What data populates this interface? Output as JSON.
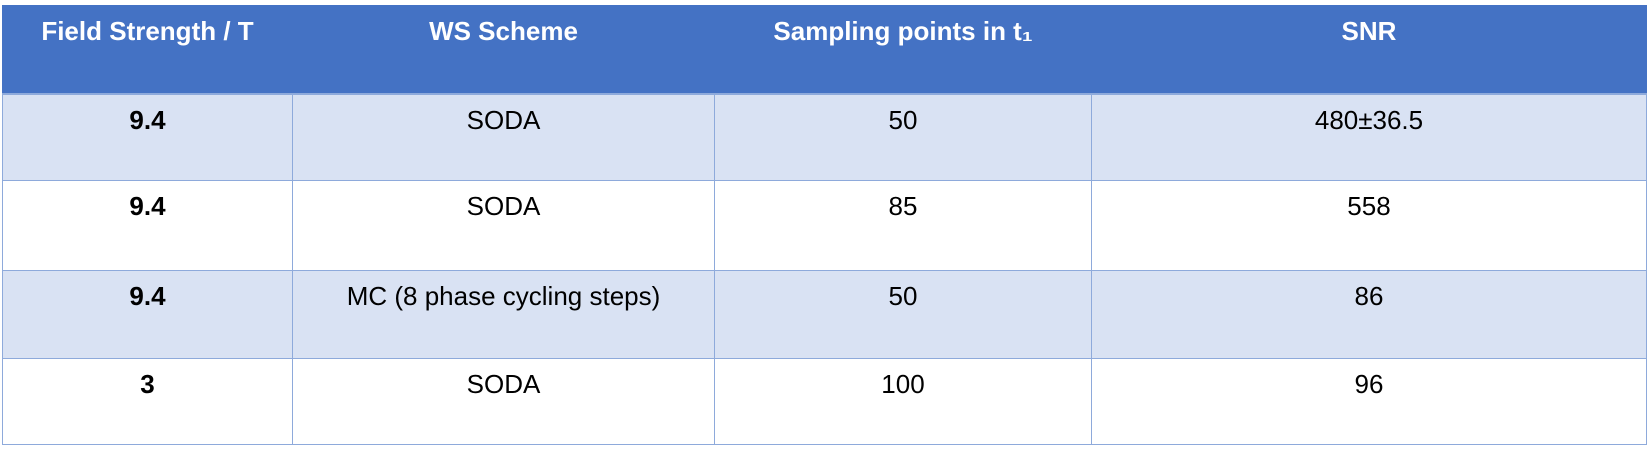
{
  "table": {
    "header": [
      "Field Strength / T",
      "WS Scheme",
      "Sampling points in t₁",
      "SNR"
    ],
    "rows": [
      [
        "9.4",
        "SODA",
        "50",
        "480±36.5"
      ],
      [
        "9.4",
        "SODA",
        "85",
        "558"
      ],
      [
        "9.4",
        "MC (8 phase cycling steps)",
        "50",
        "86"
      ],
      [
        "3",
        "SODA",
        "100",
        "96"
      ]
    ]
  }
}
